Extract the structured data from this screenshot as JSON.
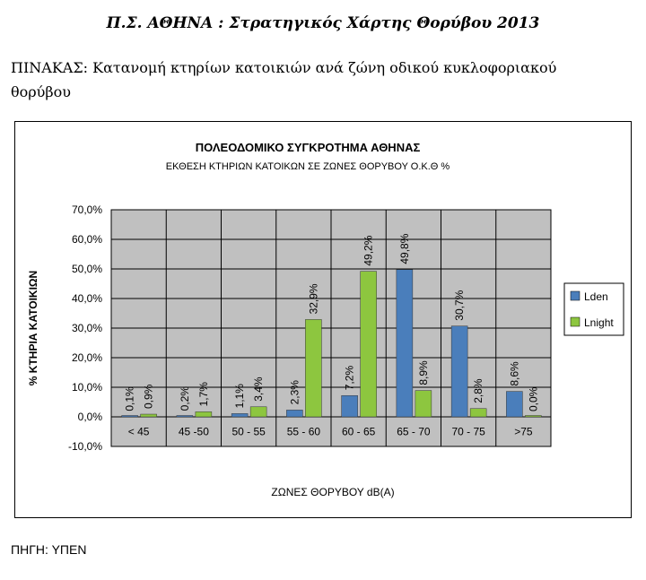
{
  "document": {
    "title": "Π.Σ. ΑΘΗΝΑ : Στρατηγικός Χάρτης Θορύβου 2013",
    "caption": "ΠΙΝΑΚΑΣ: Κατανομή κτηρίων κατοικιών ανά ζώνη οδικού κυκλοφοριακού θορύβου",
    "source": "ΠΗΓΗ: ΥΠΕΝ"
  },
  "colors": {
    "lden": "#4a7ebb",
    "lnight": "#8dc63f",
    "plot_bg": "#c0c0c0"
  },
  "chart_data": {
    "type": "bar",
    "title": "ΠΟΛΕΟΔΟΜΙΚΟ ΣΥΓΚΡΟΤΗΜΑ ΑΘΗΝΑΣ",
    "subtitle": "ΕΚΘΕΣΗ ΚΤΗΡΙΩΝ ΚΑΤΟΙΚΩΝ ΣΕ ΖΩΝΕΣ ΘΟΡΥΒΟΥ Ο.Κ.Θ %",
    "xlabel": "ΖΩΝΕΣ ΘΟΡΥΒΟΥ dB(A)",
    "ylabel": "% ΚΤΗΡΙΑ ΚΑΤΟΙΚΙΩΝ",
    "categories": [
      "< 45",
      "45 -50",
      "50 - 55",
      "55 - 60",
      "60 - 65",
      "65 - 70",
      "70 - 75",
      ">75"
    ],
    "series": [
      {
        "name": "Lden",
        "values": [
          0.1,
          0.2,
          1.1,
          2.3,
          7.2,
          49.8,
          30.7,
          8.6
        ],
        "labels": [
          "0,1%",
          "0,2%",
          "1,1%",
          "2,3%",
          "7,2%",
          "49,8%",
          "30,7%",
          "8,6%"
        ]
      },
      {
        "name": "Lnight",
        "values": [
          0.9,
          1.7,
          3.4,
          32.9,
          49.2,
          8.9,
          2.8,
          0.0
        ],
        "labels": [
          "0,9%",
          "1,7%",
          "3,4%",
          "32,9%",
          "49,2%",
          "8,9%",
          "2,8%",
          "0,0%"
        ]
      }
    ],
    "ylim": [
      -10,
      70
    ],
    "yticks": [
      -10,
      0,
      10,
      20,
      30,
      40,
      50,
      60,
      70
    ],
    "ytick_labels": [
      "-10,0%",
      "0,0%",
      "10,0%",
      "20,0%",
      "30,0%",
      "40,0%",
      "50,0%",
      "60,0%",
      "70,0%"
    ],
    "grid": true,
    "legend": "right"
  }
}
